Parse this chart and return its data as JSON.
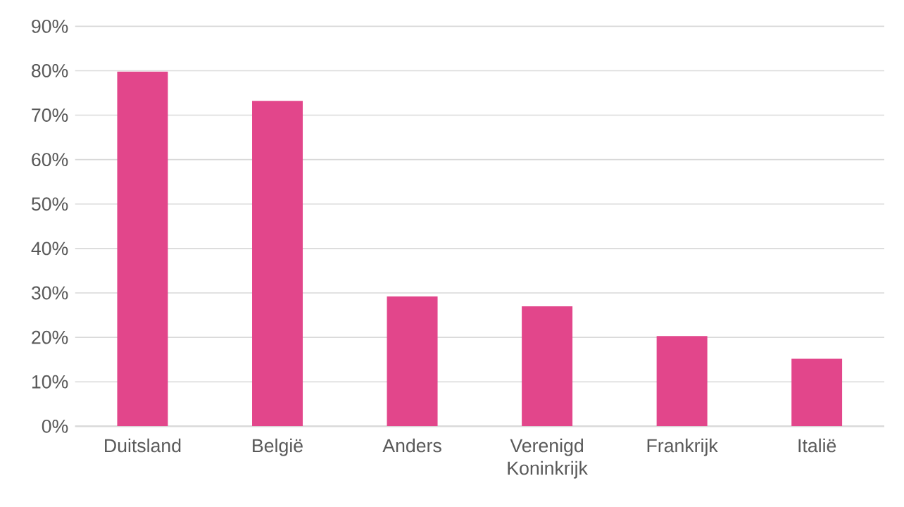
{
  "chart_data": {
    "type": "bar",
    "categories": [
      "Duitsland",
      "België",
      "Anders",
      "Verenigd Koninkrijk",
      "Frankrijk",
      "Italië"
    ],
    "values": [
      79.8,
      73.2,
      29.2,
      27,
      20.3,
      15.2
    ],
    "color": "#e2468b",
    "ylim": [
      0,
      90
    ],
    "yticks": [
      {
        "value": 0,
        "label": "0%"
      },
      {
        "value": 10,
        "label": "10%"
      },
      {
        "value": 20,
        "label": "20%"
      },
      {
        "value": 30,
        "label": "30%"
      },
      {
        "value": 40,
        "label": "40%"
      },
      {
        "value": 50,
        "label": "50%"
      },
      {
        "value": 60,
        "label": "60%"
      },
      {
        "value": 70,
        "label": "70%"
      },
      {
        "value": 80,
        "label": "80%"
      },
      {
        "value": 90,
        "label": "90%"
      }
    ],
    "grid": "y"
  }
}
